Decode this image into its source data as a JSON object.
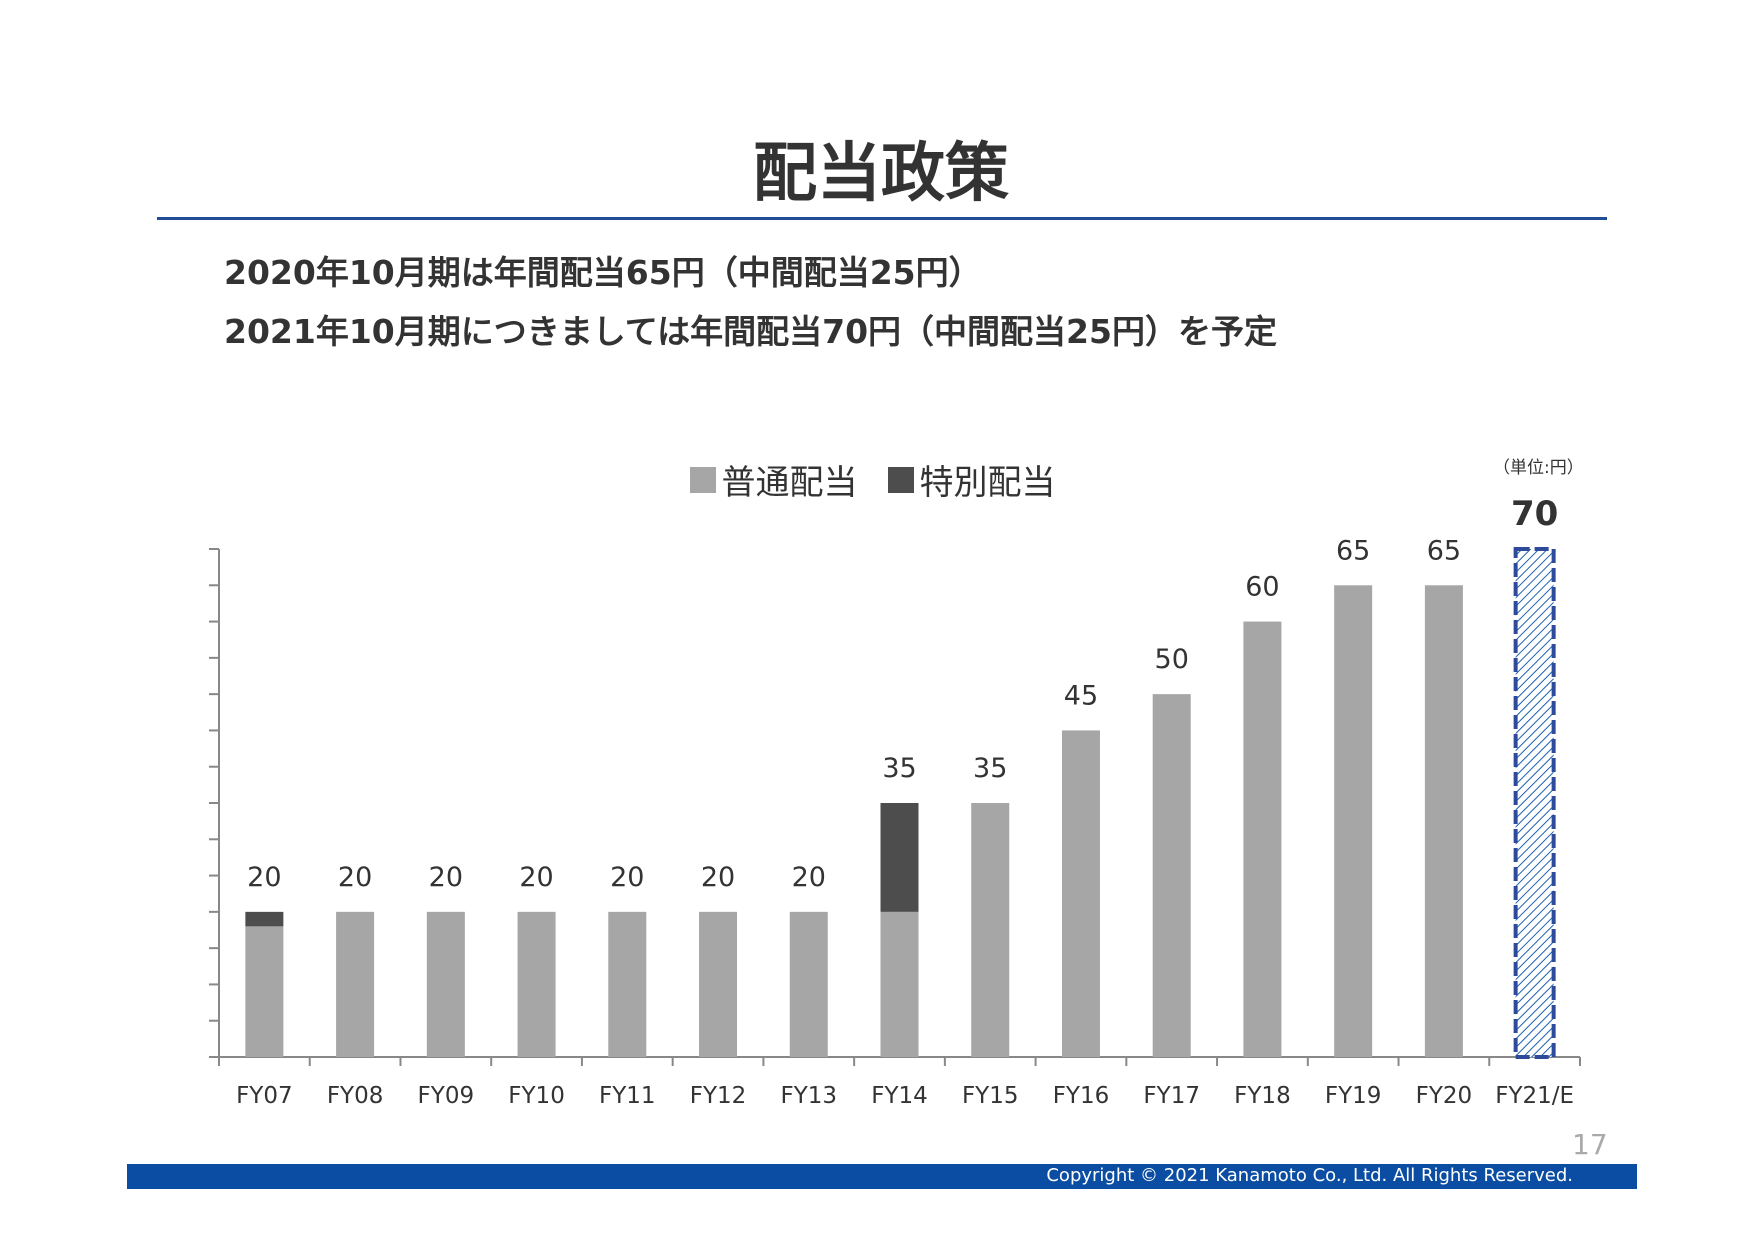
{
  "title": "配当政策",
  "subtitle": {
    "line1": "2020年10月期は年間配当65円（中間配当25円）",
    "line2": "2021年10月期につきましては年間配当70円（中間配当25円）を予定"
  },
  "unit_label": "（単位:円）",
  "page_number": "17",
  "copyright": "Copyright © 2021 Kanamoto Co., Ltd. All Rights Reserved.",
  "chart_data": {
    "type": "bar",
    "stacked": true,
    "categories": [
      "FY07",
      "FY08",
      "FY09",
      "FY10",
      "FY11",
      "FY12",
      "FY13",
      "FY14",
      "FY15",
      "FY16",
      "FY17",
      "FY18",
      "FY19",
      "FY20",
      "FY21/E"
    ],
    "series": [
      {
        "name": "普通配当",
        "color": "#a6a6a6",
        "values": [
          18,
          20,
          20,
          20,
          20,
          20,
          20,
          20,
          35,
          45,
          50,
          60,
          65,
          65,
          70
        ]
      },
      {
        "name": "特別配当",
        "color": "#4d4d4d",
        "values": [
          2,
          0,
          0,
          0,
          0,
          0,
          0,
          15,
          0,
          0,
          0,
          0,
          0,
          0,
          0
        ]
      }
    ],
    "totals": [
      20,
      20,
      20,
      20,
      20,
      20,
      20,
      35,
      35,
      45,
      50,
      60,
      65,
      65,
      70
    ],
    "total_labels": [
      "20",
      "20",
      "20",
      "20",
      "20",
      "20",
      "20",
      "35",
      "35",
      "45",
      "50",
      "60",
      "65",
      "65",
      "70"
    ],
    "forecast_category": "FY21/E",
    "forecast_style": {
      "border": "#2e4a9a",
      "hatch": "#1c5fb5"
    },
    "ylim": [
      0,
      70
    ],
    "y_tick_step": 5,
    "legend_position": "top-center",
    "grid": false
  }
}
